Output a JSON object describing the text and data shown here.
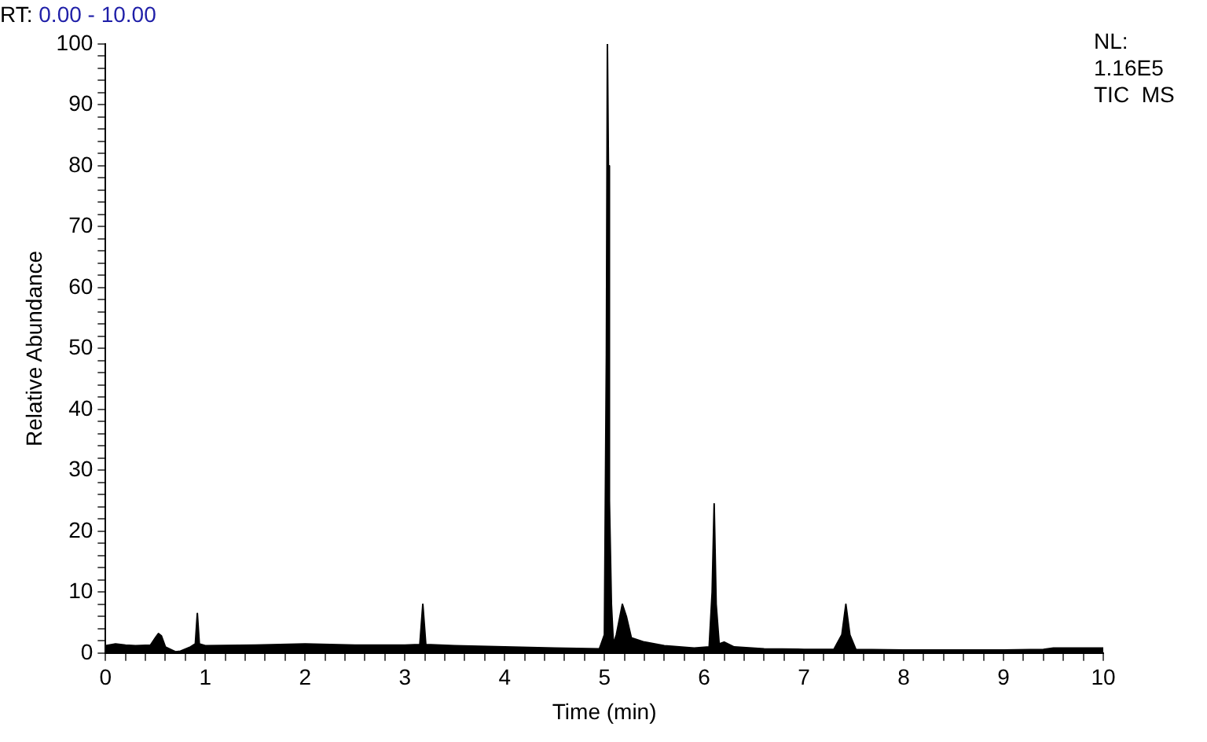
{
  "chart_data": {
    "type": "area",
    "title": "RT: 0.00 - 10.00",
    "xlabel": "Time (min)",
    "ylabel": "Relative Abundance",
    "annotations": [
      "NL: 1.16E5",
      "TIC  MS"
    ],
    "series": [
      {
        "color": "#000000",
        "x": [
          0,
          0.1,
          0.2,
          0.3,
          0.45,
          0.5,
          0.53,
          0.56,
          0.6,
          0.7,
          0.75,
          0.85,
          0.9,
          0.92,
          0.94,
          1.0,
          1.5,
          2.0,
          2.5,
          3.0,
          3.15,
          3.18,
          3.21,
          3.5,
          4.0,
          4.5,
          4.95,
          5.0,
          5.02,
          5.03,
          5.04,
          5.05,
          5.07,
          5.09,
          5.12,
          5.18,
          5.22,
          5.27,
          5.4,
          5.6,
          5.9,
          6.05,
          6.08,
          6.1,
          6.12,
          6.15,
          6.2,
          6.3,
          6.6,
          7.0,
          7.3,
          7.38,
          7.42,
          7.46,
          7.52,
          8.0,
          8.5,
          9.0,
          9.4,
          9.5,
          10.0
        ],
        "values": [
          1.2,
          1.5,
          1.3,
          1.2,
          1.3,
          2.5,
          3.2,
          2.8,
          1.0,
          0.2,
          0.3,
          1.0,
          1.5,
          6.5,
          1.5,
          1.2,
          1.3,
          1.5,
          1.3,
          1.3,
          1.4,
          8,
          1.4,
          1.2,
          1.0,
          0.8,
          0.7,
          3,
          49,
          100,
          80,
          25,
          8,
          1.5,
          3,
          8,
          6,
          2.5,
          1.8,
          1.2,
          0.8,
          1.0,
          10,
          24.5,
          8,
          1.5,
          1.8,
          1.0,
          0.7,
          0.6,
          0.6,
          3,
          8,
          3,
          0.6,
          0.5,
          0.5,
          0.5,
          0.6,
          0.8,
          0.8
        ]
      }
    ],
    "xlim": [
      0,
      10
    ],
    "xticks": [
      0,
      {
        "value": 0.2,
        "label": null
      },
      {
        "value": 0.4,
        "label": null
      },
      {
        "value": 0.6,
        "label": null
      },
      {
        "value": 0.8,
        "label": null
      },
      1,
      {
        "value": 1.2,
        "label": null
      },
      {
        "value": 1.4,
        "label": null
      },
      {
        "value": 1.6,
        "label": null
      },
      {
        "value": 1.8,
        "label": null
      },
      2,
      {
        "value": 2.2,
        "label": null
      },
      {
        "value": 2.4,
        "label": null
      },
      {
        "value": 2.6,
        "label": null
      },
      {
        "value": 2.8,
        "label": null
      },
      3,
      {
        "value": 3.2,
        "label": null
      },
      {
        "value": 3.4,
        "label": null
      },
      {
        "value": 3.6,
        "label": null
      },
      {
        "value": 3.8,
        "label": null
      },
      4,
      {
        "value": 4.2,
        "label": null
      },
      {
        "value": 4.4,
        "label": null
      },
      {
        "value": 4.6,
        "label": null
      },
      {
        "value": 4.8,
        "label": null
      },
      5,
      {
        "value": 5.2,
        "label": null
      },
      {
        "value": 5.4,
        "label": null
      },
      {
        "value": 5.6,
        "label": null
      },
      {
        "value": 5.8,
        "label": null
      },
      6,
      {
        "value": 6.2,
        "label": null
      },
      {
        "value": 6.4,
        "label": null
      },
      {
        "value": 6.6,
        "label": null
      },
      {
        "value": 6.8,
        "label": null
      },
      7,
      {
        "value": 7.2,
        "label": null
      },
      {
        "value": 7.4,
        "label": null
      },
      {
        "value": 7.6,
        "label": null
      },
      {
        "value": 7.8,
        "label": null
      },
      8,
      {
        "value": 8.2,
        "label": null
      },
      {
        "value": 8.4,
        "label": null
      },
      {
        "value": 8.6,
        "label": null
      },
      {
        "value": 8.8,
        "label": null
      },
      9,
      {
        "value": 9.2,
        "label": null
      },
      {
        "value": 9.4,
        "label": null
      },
      {
        "value": 9.6,
        "label": null
      },
      {
        "value": 9.8,
        "label": null
      },
      10
    ],
    "ylim": [
      0,
      100
    ],
    "yticks": [
      0,
      {
        "value": 2,
        "label": null
      },
      {
        "value": 4,
        "label": null
      },
      {
        "value": 6,
        "label": null
      },
      {
        "value": 8,
        "label": null
      },
      10,
      {
        "value": 12,
        "label": null
      },
      {
        "value": 14,
        "label": null
      },
      {
        "value": 16,
        "label": null
      },
      {
        "value": 18,
        "label": null
      },
      20,
      {
        "value": 22,
        "label": null
      },
      {
        "value": 24,
        "label": null
      },
      {
        "value": 26,
        "label": null
      },
      {
        "value": 28,
        "label": null
      },
      30,
      {
        "value": 32,
        "label": null
      },
      {
        "value": 34,
        "label": null
      },
      {
        "value": 36,
        "label": null
      },
      {
        "value": 38,
        "label": null
      },
      40,
      {
        "value": 42,
        "label": null
      },
      {
        "value": 44,
        "label": null
      },
      {
        "value": 46,
        "label": null
      },
      {
        "value": 48,
        "label": null
      },
      50,
      {
        "value": 52,
        "label": null
      },
      {
        "value": 54,
        "label": null
      },
      {
        "value": 56,
        "label": null
      },
      {
        "value": 58,
        "label": null
      },
      60,
      {
        "value": 62,
        "label": null
      },
      {
        "value": 64,
        "label": null
      },
      {
        "value": 66,
        "label": null
      },
      {
        "value": 68,
        "label": null
      },
      70,
      {
        "value": 72,
        "label": null
      },
      {
        "value": 74,
        "label": null
      },
      {
        "value": 76,
        "label": null
      },
      {
        "value": 78,
        "label": null
      },
      80,
      {
        "value": 82,
        "label": null
      },
      {
        "value": 84,
        "label": null
      },
      {
        "value": 86,
        "label": null
      },
      {
        "value": 88,
        "label": null
      },
      90,
      {
        "value": 92,
        "label": null
      },
      {
        "value": 94,
        "label": null
      },
      {
        "value": 96,
        "label": null
      },
      {
        "value": 98,
        "label": null
      },
      100
    ],
    "grid": false,
    "legend": false
  }
}
